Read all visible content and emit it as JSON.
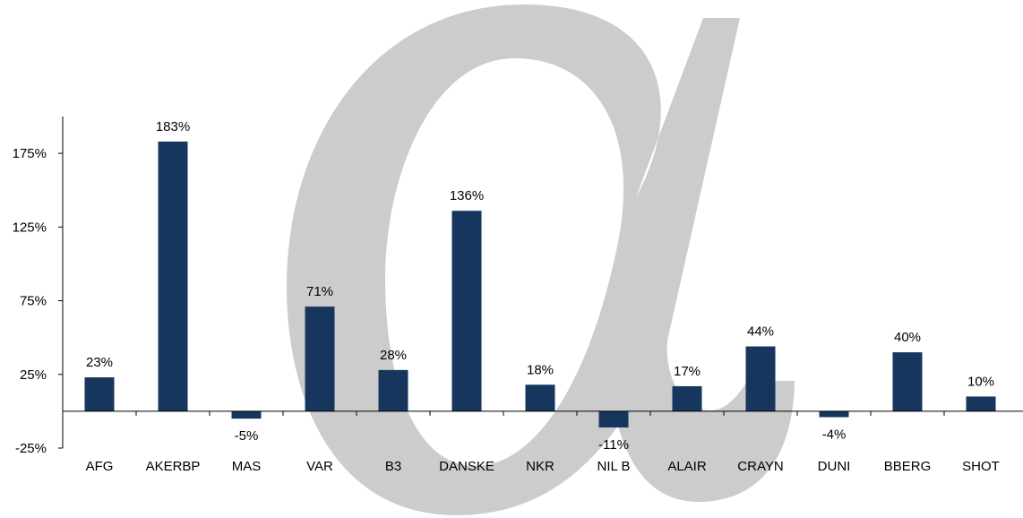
{
  "chart_data": {
    "type": "bar",
    "categories": [
      "AFG",
      "AKERBP",
      "MAS",
      "VAR",
      "B3",
      "DANSKE",
      "NKR",
      "NIL B",
      "ALAIR",
      "CRAYN",
      "DUNI",
      "BBERG",
      "SHOT"
    ],
    "values": [
      23,
      183,
      -5,
      71,
      28,
      136,
      18,
      -11,
      17,
      44,
      -4,
      40,
      10
    ],
    "data_labels": [
      "23%",
      "183%",
      "-5%",
      "71%",
      "28%",
      "136%",
      "18%",
      "-11%",
      "17%",
      "44%",
      "-4%",
      "40%",
      "10%"
    ],
    "yticks": [
      -25,
      25,
      75,
      125,
      175
    ],
    "ytick_labels": [
      "-25%",
      "25%",
      "75%",
      "125%",
      "175%"
    ],
    "ylim": [
      -25,
      200
    ],
    "title": "",
    "xlabel": "",
    "ylabel": "",
    "grid": false,
    "legend": "none",
    "bar_color": "#17365d",
    "watermark_color": "#cccccc"
  }
}
